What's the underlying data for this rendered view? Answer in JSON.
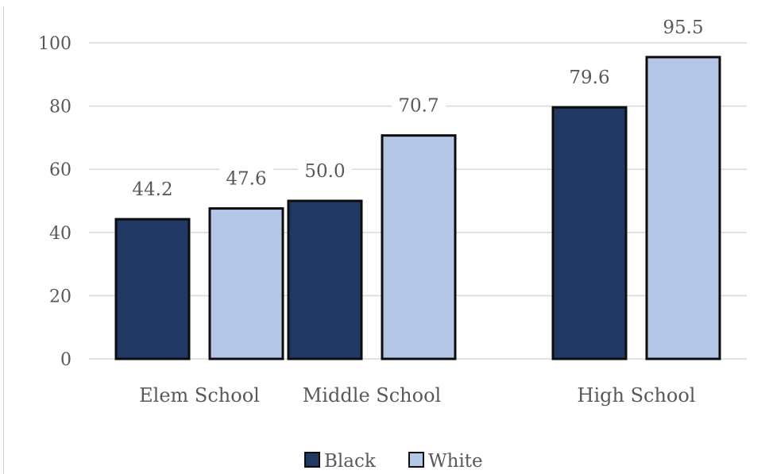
{
  "chart_data": {
    "type": "bar",
    "categories": [
      "Elem School",
      "Middle School",
      "High School"
    ],
    "series": [
      {
        "name": "Black",
        "color": "#203864",
        "values": [
          44.2,
          50.0,
          79.6
        ],
        "labels": [
          "44.2",
          "50.0",
          "79.6"
        ]
      },
      {
        "name": "White",
        "color": "#b4c7e7",
        "values": [
          47.6,
          70.7,
          95.5
        ],
        "labels": [
          "47.6",
          "70.7",
          "95.5"
        ]
      }
    ],
    "ylim": [
      0,
      100
    ],
    "yticks": [
      "0",
      "20",
      "40",
      "60",
      "80",
      "100"
    ],
    "grid": true,
    "legend": "bottom-center",
    "title": "",
    "xlabel": "",
    "ylabel": "",
    "colors": {
      "gridline": "#d9d9d9",
      "bar_outline": "#0d0d0d",
      "text": "#595959"
    }
  }
}
